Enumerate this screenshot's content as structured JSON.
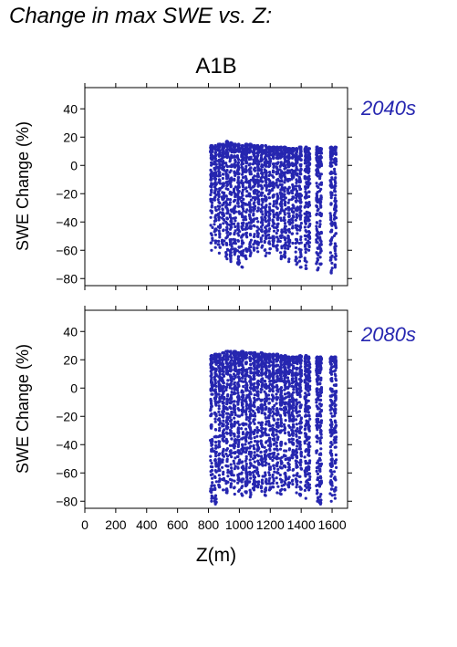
{
  "header": {
    "title": "Change in max SWE vs. Z:"
  },
  "scenario": "A1B",
  "colors": {
    "points": "#2626b0",
    "label": "#2626b0",
    "frame": "#000000"
  },
  "chart_data": [
    {
      "type": "scatter",
      "period": "2040s",
      "xlabel": "Z(m)",
      "ylabel": "SWE Change (%)",
      "xlim": [
        0,
        1700
      ],
      "ylim": [
        -85,
        55
      ],
      "xticks": [
        0,
        200,
        400,
        600,
        800,
        1000,
        1200,
        1400,
        1600
      ],
      "xtick_labels": [
        "0",
        "200",
        "400",
        "600",
        "800",
        "1000",
        "1200",
        "1400",
        "1600"
      ],
      "yticks": [
        -80,
        -60,
        -40,
        -20,
        0,
        20,
        40
      ],
      "ytick_labels": [
        "−80",
        "−60",
        "−40",
        "−20",
        "0",
        "20",
        "40"
      ],
      "grid": false,
      "columns": [
        {
          "x": 820,
          "ymin": -60,
          "ymax": 14
        },
        {
          "x": 845,
          "ymin": -58,
          "ymax": 14
        },
        {
          "x": 870,
          "ymin": -62,
          "ymax": 15
        },
        {
          "x": 895,
          "ymin": -56,
          "ymax": 15
        },
        {
          "x": 920,
          "ymin": -66,
          "ymax": 17
        },
        {
          "x": 945,
          "ymin": -68,
          "ymax": 16
        },
        {
          "x": 970,
          "ymin": -63,
          "ymax": 15
        },
        {
          "x": 995,
          "ymin": -70,
          "ymax": 15
        },
        {
          "x": 1020,
          "ymin": -72,
          "ymax": 14
        },
        {
          "x": 1045,
          "ymin": -66,
          "ymax": 15
        },
        {
          "x": 1070,
          "ymin": -64,
          "ymax": 15
        },
        {
          "x": 1095,
          "ymin": -60,
          "ymax": 14
        },
        {
          "x": 1120,
          "ymin": -61,
          "ymax": 14
        },
        {
          "x": 1145,
          "ymin": -58,
          "ymax": 14
        },
        {
          "x": 1170,
          "ymin": -64,
          "ymax": 14
        },
        {
          "x": 1195,
          "ymin": -62,
          "ymax": 13
        },
        {
          "x": 1220,
          "ymin": -57,
          "ymax": 13
        },
        {
          "x": 1245,
          "ymin": -60,
          "ymax": 13
        },
        {
          "x": 1270,
          "ymin": -66,
          "ymax": 13
        },
        {
          "x": 1295,
          "ymin": -65,
          "ymax": 13
        },
        {
          "x": 1320,
          "ymin": -68,
          "ymax": 12
        },
        {
          "x": 1345,
          "ymin": -55,
          "ymax": 12
        },
        {
          "x": 1370,
          "ymin": -70,
          "ymax": 12
        },
        {
          "x": 1395,
          "ymin": -72,
          "ymax": 13
        },
        {
          "x": 1430,
          "ymin": -73,
          "ymax": 13
        },
        {
          "x": 1450,
          "ymin": -60,
          "ymax": 12
        },
        {
          "x": 1505,
          "ymin": -74,
          "ymax": 13
        },
        {
          "x": 1525,
          "ymin": -70,
          "ymax": 12
        },
        {
          "x": 1595,
          "ymin": -76,
          "ymax": 13
        },
        {
          "x": 1620,
          "ymin": -72,
          "ymax": 13
        }
      ]
    },
    {
      "type": "scatter",
      "period": "2080s",
      "xlabel": "Z(m)",
      "ylabel": "SWE Change (%)",
      "xlim": [
        0,
        1700
      ],
      "ylim": [
        -85,
        55
      ],
      "xticks": [
        0,
        200,
        400,
        600,
        800,
        1000,
        1200,
        1400,
        1600
      ],
      "xtick_labels": [
        "0",
        "200",
        "400",
        "600",
        "800",
        "1000",
        "1200",
        "1400",
        "1600"
      ],
      "yticks": [
        -80,
        -60,
        -40,
        -20,
        0,
        20,
        40
      ],
      "ytick_labels": [
        "−80",
        "−60",
        "−40",
        "−20",
        "0",
        "20",
        "40"
      ],
      "grid": false,
      "columns": [
        {
          "x": 820,
          "ymin": -80,
          "ymax": 23
        },
        {
          "x": 845,
          "ymin": -82,
          "ymax": 24
        },
        {
          "x": 870,
          "ymin": -70,
          "ymax": 24
        },
        {
          "x": 895,
          "ymin": -72,
          "ymax": 25
        },
        {
          "x": 920,
          "ymin": -74,
          "ymax": 26
        },
        {
          "x": 945,
          "ymin": -70,
          "ymax": 26
        },
        {
          "x": 970,
          "ymin": -75,
          "ymax": 26
        },
        {
          "x": 995,
          "ymin": -73,
          "ymax": 25
        },
        {
          "x": 1020,
          "ymin": -76,
          "ymax": 26
        },
        {
          "x": 1045,
          "ymin": -74,
          "ymax": 25
        },
        {
          "x": 1070,
          "ymin": -77,
          "ymax": 25
        },
        {
          "x": 1095,
          "ymin": -72,
          "ymax": 25
        },
        {
          "x": 1120,
          "ymin": -70,
          "ymax": 24
        },
        {
          "x": 1145,
          "ymin": -73,
          "ymax": 25
        },
        {
          "x": 1170,
          "ymin": -76,
          "ymax": 24
        },
        {
          "x": 1195,
          "ymin": -72,
          "ymax": 24
        },
        {
          "x": 1220,
          "ymin": -70,
          "ymax": 24
        },
        {
          "x": 1245,
          "ymin": -74,
          "ymax": 24
        },
        {
          "x": 1270,
          "ymin": -75,
          "ymax": 23
        },
        {
          "x": 1295,
          "ymin": -72,
          "ymax": 23
        },
        {
          "x": 1320,
          "ymin": -70,
          "ymax": 22
        },
        {
          "x": 1345,
          "ymin": -68,
          "ymax": 22
        },
        {
          "x": 1370,
          "ymin": -74,
          "ymax": 22
        },
        {
          "x": 1395,
          "ymin": -76,
          "ymax": 23
        },
        {
          "x": 1430,
          "ymin": -78,
          "ymax": 23
        },
        {
          "x": 1450,
          "ymin": -72,
          "ymax": 22
        },
        {
          "x": 1505,
          "ymin": -80,
          "ymax": 22
        },
        {
          "x": 1525,
          "ymin": -82,
          "ymax": 22
        },
        {
          "x": 1595,
          "ymin": -80,
          "ymax": 22
        },
        {
          "x": 1620,
          "ymin": -78,
          "ymax": 22
        }
      ]
    }
  ]
}
